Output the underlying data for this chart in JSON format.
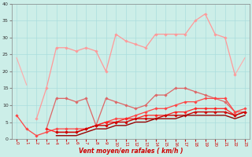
{
  "title": "",
  "xlabel": "Vent moyen/en rafales ( km/h )",
  "x_ticks": [
    0,
    1,
    2,
    3,
    4,
    5,
    6,
    7,
    8,
    9,
    10,
    11,
    12,
    13,
    14,
    15,
    16,
    17,
    18,
    19,
    20,
    21,
    22,
    23
  ],
  "ylim": [
    0,
    40
  ],
  "yticks": [
    0,
    5,
    10,
    15,
    20,
    25,
    30,
    35,
    40
  ],
  "background_color": "#cceee8",
  "grid_color": "#aadddd",
  "lines": [
    {
      "color": "#ffaaaa",
      "lw": 0.8,
      "marker": null,
      "y": [
        24,
        16,
        null,
        null,
        null,
        null,
        null,
        null,
        null,
        null,
        null,
        null,
        null,
        null,
        null,
        null,
        null,
        null,
        null,
        null,
        null,
        null,
        null,
        null
      ]
    },
    {
      "color": "#ffaaaa",
      "lw": 0.8,
      "marker": null,
      "y": [
        null,
        null,
        null,
        null,
        null,
        null,
        null,
        null,
        null,
        null,
        null,
        null,
        null,
        null,
        null,
        null,
        null,
        null,
        null,
        null,
        null,
        null,
        19,
        24
      ]
    },
    {
      "color": "#ff9999",
      "lw": 0.9,
      "marker": "D",
      "markersize": 1.8,
      "y": [
        null,
        null,
        6,
        15,
        27,
        27,
        26,
        27,
        26,
        20,
        31,
        29,
        28,
        27,
        31,
        31,
        31,
        31,
        35,
        37,
        31,
        30,
        19,
        null
      ]
    },
    {
      "color": "#dd6666",
      "lw": 0.9,
      "marker": "D",
      "markersize": 1.8,
      "y": [
        null,
        null,
        null,
        3,
        12,
        12,
        11,
        12,
        4,
        12,
        11,
        10,
        9,
        10,
        13,
        13,
        15,
        15,
        14,
        13,
        12,
        11,
        8,
        8
      ]
    },
    {
      "color": "#ff4444",
      "lw": 0.9,
      "marker": "D",
      "markersize": 1.8,
      "y": [
        7,
        3,
        1,
        2,
        3,
        3,
        3,
        3,
        4,
        5,
        6,
        6,
        7,
        8,
        9,
        9,
        10,
        11,
        11,
        12,
        12,
        12,
        8,
        9
      ]
    },
    {
      "color": "#ff2222",
      "lw": 0.9,
      "marker": "D",
      "markersize": 1.8,
      "y": [
        null,
        null,
        null,
        3,
        2,
        2,
        2,
        3,
        4,
        5,
        5,
        6,
        6,
        7,
        7,
        7,
        8,
        8,
        9,
        9,
        9,
        9,
        7,
        8
      ]
    },
    {
      "color": "#cc0000",
      "lw": 1.0,
      "marker": "D",
      "markersize": 1.8,
      "y": [
        null,
        null,
        null,
        null,
        2,
        2,
        2,
        3,
        4,
        4,
        5,
        5,
        6,
        6,
        6,
        7,
        7,
        7,
        8,
        8,
        8,
        8,
        7,
        8
      ]
    },
    {
      "color": "#990000",
      "lw": 1.0,
      "marker": null,
      "y": [
        null,
        null,
        null,
        null,
        1,
        1,
        1,
        2,
        3,
        3,
        4,
        4,
        5,
        5,
        6,
        6,
        6,
        7,
        7,
        7,
        7,
        7,
        6,
        7
      ]
    }
  ]
}
